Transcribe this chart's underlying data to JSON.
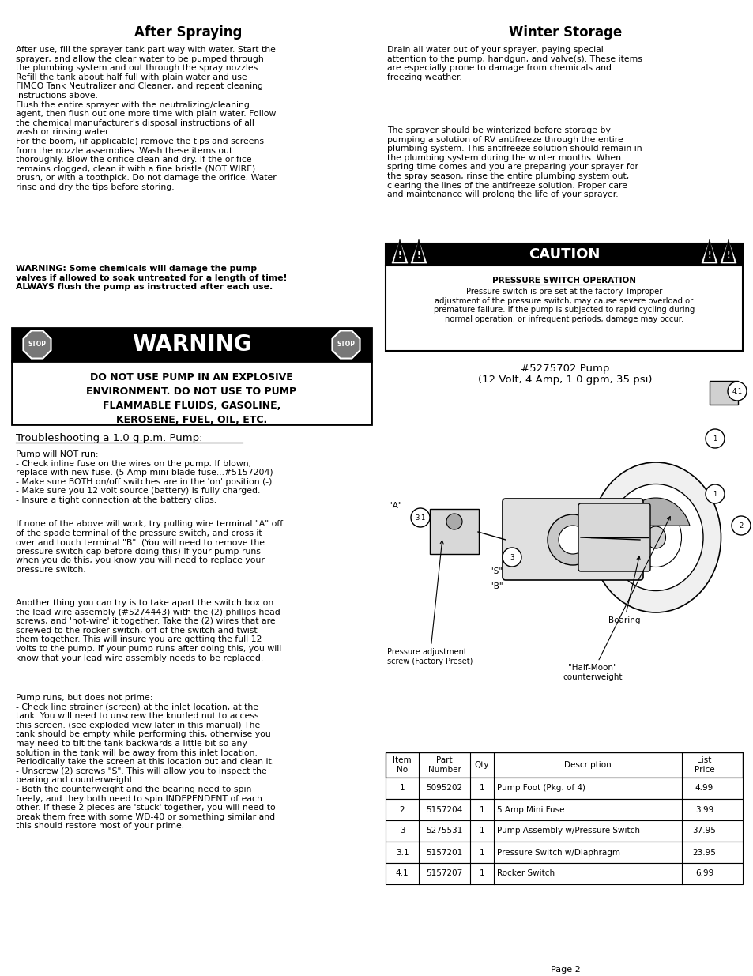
{
  "page_bg": "#ffffff",
  "title_after_spraying": "After Spraying",
  "title_winter_storage": "Winter Storage",
  "after_spraying_p1": "After use, fill the sprayer tank part way with water. Start the\nsprayer, and allow the clear water to be pumped through\nthe plumbing system and out through the spray nozzles.\nRefill the tank about half full with plain water and use\nFIMCO Tank Neutralizer and Cleaner, and repeat cleaning\ninstructions above.\nFlush the entire sprayer with the neutralizing/cleaning\nagent, then flush out one more time with plain water. Follow\nthe chemical manufacturer's disposal instructions of all\nwash or rinsing water.\nFor the boom, (if applicable) remove the tips and screens\nfrom the nozzle assemblies. Wash these items out\nthoroughly. Blow the orifice clean and dry. If the orifice\nremains clogged, clean it with a fine bristle (NOT WIRE)\nbrush, or with a toothpick. Do not damage the orifice. Water\nrinse and dry the tips before storing.",
  "after_spraying_warning": "WARNING: Some chemicals will damage the pump\nvalves if allowed to soak untreated for a length of time!\nALWAYS flush the pump as instructed after each use.",
  "winter_storage_p1": "Drain all water out of your sprayer, paying special\nattention to the pump, handgun, and valve(s). These items\nare especially prone to damage from chemicals and\nfreezing weather.",
  "winter_storage_p2": "The sprayer should be winterized before storage by\npumping a solution of RV antifreeze through the entire\nplumbing system. This antifreeze solution should remain in\nthe plumbing system during the winter months. When\nspring time comes and you are preparing your sprayer for\nthe spray season, rinse the entire plumbing system out,\nclearing the lines of the antifreeze solution. Proper care\nand maintenance will prolong the life of your sprayer.",
  "caution_header": "CAUTION",
  "caution_subheader": "PRESSURE SWITCH OPERATION",
  "caution_text": "Pressure switch is pre-set at the factory. Improper\nadjustment of the pressure switch, may cause severe overload or\npremature failure. If the pump is subjected to rapid cycling during\nnormal operation, or infrequent periods, damage may occur.",
  "warning_line1": "DO NOT USE PUMP IN AN EXPLOSIVE",
  "warning_line2": "ENVIRONMENT. DO NOT USE TO PUMP",
  "warning_line3": "FLAMMABLE FLUIDS, GASOLINE,",
  "warning_line4": "KEROSENE, FUEL, OIL, ETC.",
  "pump_title": "#5275702 Pump",
  "pump_subtitle": "(12 Volt, 4 Amp, 1.0 gpm, 35 psi)",
  "troubleshoot_title": "Troubleshooting a 1.0 g.p.m. Pump:",
  "troubleshoot_p1": "Pump will NOT run:\n- Check inline fuse on the wires on the pump. If blown,\nreplace with new fuse. (5 Amp mini-blade fuse...#5157204)\n- Make sure BOTH on/off switches are in the 'on' position (-).\n- Make sure you 12 volt source (battery) is fully charged.\n- Insure a tight connection at the battery clips.",
  "troubleshoot_p2": "If none of the above will work, try pulling wire terminal \"A\" off\nof the spade terminal of the pressure switch, and cross it\nover and touch terminal \"B\". (You will need to remove the\npressure switch cap before doing this) If your pump runs\nwhen you do this, you know you will need to replace your\npressure switch.",
  "troubleshoot_p3": "Another thing you can try is to take apart the switch box on\nthe lead wire assembly (#5274443) with the (2) phillips head\nscrews, and 'hot-wire' it together. Take the (2) wires that are\nscrewed to the rocker switch, off of the switch and twist\nthem together. This will insure you are getting the full 12\nvolts to the pump. If your pump runs after doing this, you will\nknow that your lead wire assembly needs to be replaced.",
  "troubleshoot_p4": "Pump runs, but does not prime:\n- Check line strainer (screen) at the inlet location, at the\ntank. You will need to unscrew the knurled nut to access\nthis screen. (see exploded view later in this manual) The\ntank should be empty while performing this, otherwise you\nmay need to tilt the tank backwards a little bit so any\nsolution in the tank will be away from this inlet location.\nPeriodically take the screen at this location out and clean it.\n- Unscrew (2) screws \"S\". This will allow you to inspect the\nbearing and counterweight.\n- Both the counterweight and the bearing need to spin\nfreely, and they both need to spin INDEPENDENT of each\nother. If these 2 pieces are 'stuck' together, you will need to\nbreak them free with some WD-40 or something similar and\nthis should restore most of your prime.",
  "table_headers": [
    "Item\nNo",
    "Part\nNumber",
    "Qty",
    "Description",
    "List\nPrice"
  ],
  "table_data": [
    [
      "1",
      "5095202",
      "1",
      "Pump Foot (Pkg. of 4)",
      "4.99"
    ],
    [
      "2",
      "5157204",
      "1",
      "5 Amp Mini Fuse",
      "3.99"
    ],
    [
      "3",
      "5275531",
      "1",
      "Pump Assembly w/Pressure Switch",
      "37.95"
    ],
    [
      "3.1",
      "5157201",
      "1",
      "Pressure Switch w/Diaphragm",
      "23.95"
    ],
    [
      "4.1",
      "5157207",
      "1",
      "Rocker Switch",
      "6.99"
    ]
  ],
  "page_number": "Page 2",
  "pressure_adj_label": "Pressure adjustment\nscrew (Factory Preset)",
  "bearing_label": "Bearing",
  "halfmoon_label": "\"Half-Moon\"\ncounterweight"
}
